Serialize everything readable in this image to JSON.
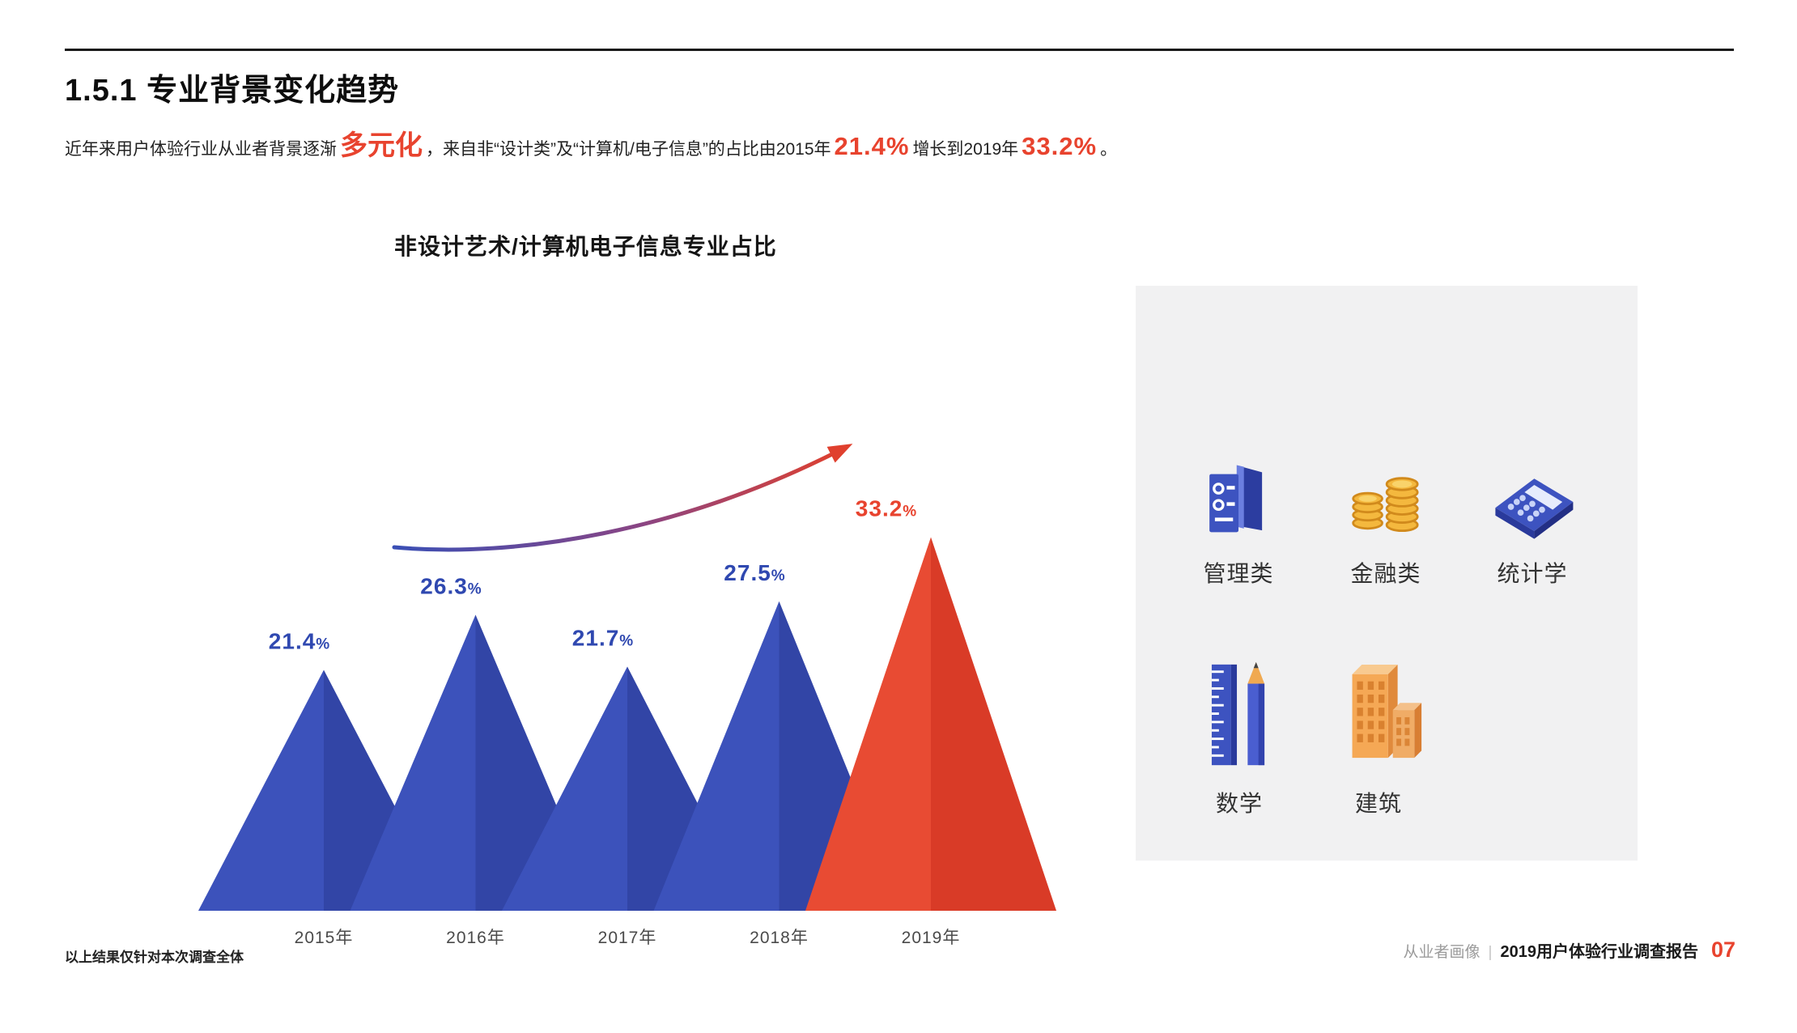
{
  "header": {
    "title": "1.5.1 专业背景变化趋势"
  },
  "intro": {
    "seg1": "近年来用户体验行业从业者背景逐渐",
    "em1": "多元化",
    "seg2": "，来自非“设计类”及“计算机/电子信息”的占比由2015年",
    "em2": "21.4%",
    "seg3": "增长到2019年",
    "em3": "33.2%",
    "seg4": "。"
  },
  "chart_data": {
    "type": "area",
    "title": "非设计艺术/计算机电子信息专业占比",
    "categories": [
      "2015年",
      "2016年",
      "2017年",
      "2018年",
      "2019年"
    ],
    "values": [
      21.4,
      26.3,
      21.7,
      27.5,
      33.2
    ],
    "value_labels": [
      "21.4",
      "26.3",
      "21.7",
      "27.5",
      "33.2"
    ],
    "percent_sign": "%",
    "ylim": [
      0,
      35
    ],
    "grid": false,
    "legend": "none",
    "highlight_index": 4,
    "trend": "rising",
    "colors": {
      "peak_blue": "#3C52BB",
      "peak_blue_shade": "#3245A6",
      "peak_red": "#E84B33",
      "peak_red_shade": "#D93B27",
      "label_blue": "#2F48B0",
      "label_red": "#E8432E",
      "arrow_start": "#3A4FB5",
      "arrow_mid": "#8A4584",
      "arrow_end": "#E0402E"
    }
  },
  "majors_panel": {
    "items": [
      {
        "label": "管理类",
        "icon": "books-icon"
      },
      {
        "label": "金融类",
        "icon": "coins-icon"
      },
      {
        "label": "统计学",
        "icon": "calculator-icon"
      },
      {
        "label": "数学",
        "icon": "ruler-pencil-icon"
      },
      {
        "label": "建筑",
        "icon": "buildings-icon"
      }
    ]
  },
  "footer": {
    "note": "以上结果仅针对本次调查全体",
    "section": "从业者画像",
    "separator": "|",
    "report": "2019用户体验行业调查报告",
    "page": "07"
  }
}
